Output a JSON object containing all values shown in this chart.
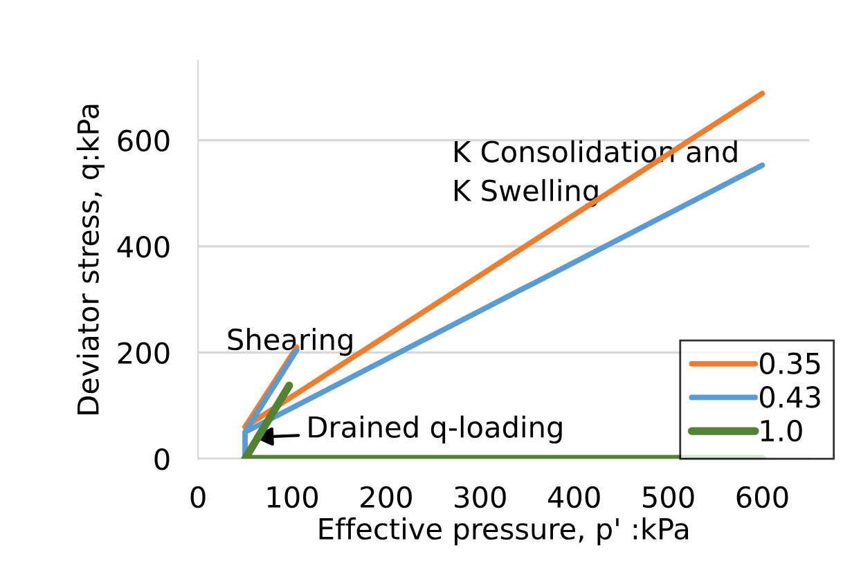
{
  "chart_data": {
    "type": "line",
    "xlabel": "Effective pressure, p' :kPa",
    "ylabel": "Deviator stress, q:kPa",
    "series": [
      {
        "name": "0.35",
        "color": "#ed7d31",
        "x": [
          105,
          50,
          600
        ],
        "values": [
          210,
          60,
          688
        ]
      },
      {
        "name": "0.43",
        "color": "#5b9bd5",
        "x": [
          105,
          50,
          50,
          50,
          600
        ],
        "values": [
          205,
          50,
          0,
          50,
          553
        ]
      },
      {
        "name": "1.0",
        "color": "#548235",
        "x": [
          97,
          50,
          600
        ],
        "values": [
          138,
          0,
          0
        ]
      }
    ],
    "annotations": [
      "K Consolidation and\nK Swelling",
      "Shearing",
      {
        "text": "Drained q-loading",
        "x": 55,
        "y": 40
      }
    ],
    "xlim": [
      0,
      650
    ],
    "xticks": [
      0,
      100,
      200,
      300,
      400,
      500,
      600
    ],
    "ylim": [
      0,
      750
    ],
    "yticks": [
      0,
      200,
      400,
      600
    ],
    "grid": "y",
    "legend": "bottom right",
    "marker": "none",
    "line_style": "solid"
  }
}
